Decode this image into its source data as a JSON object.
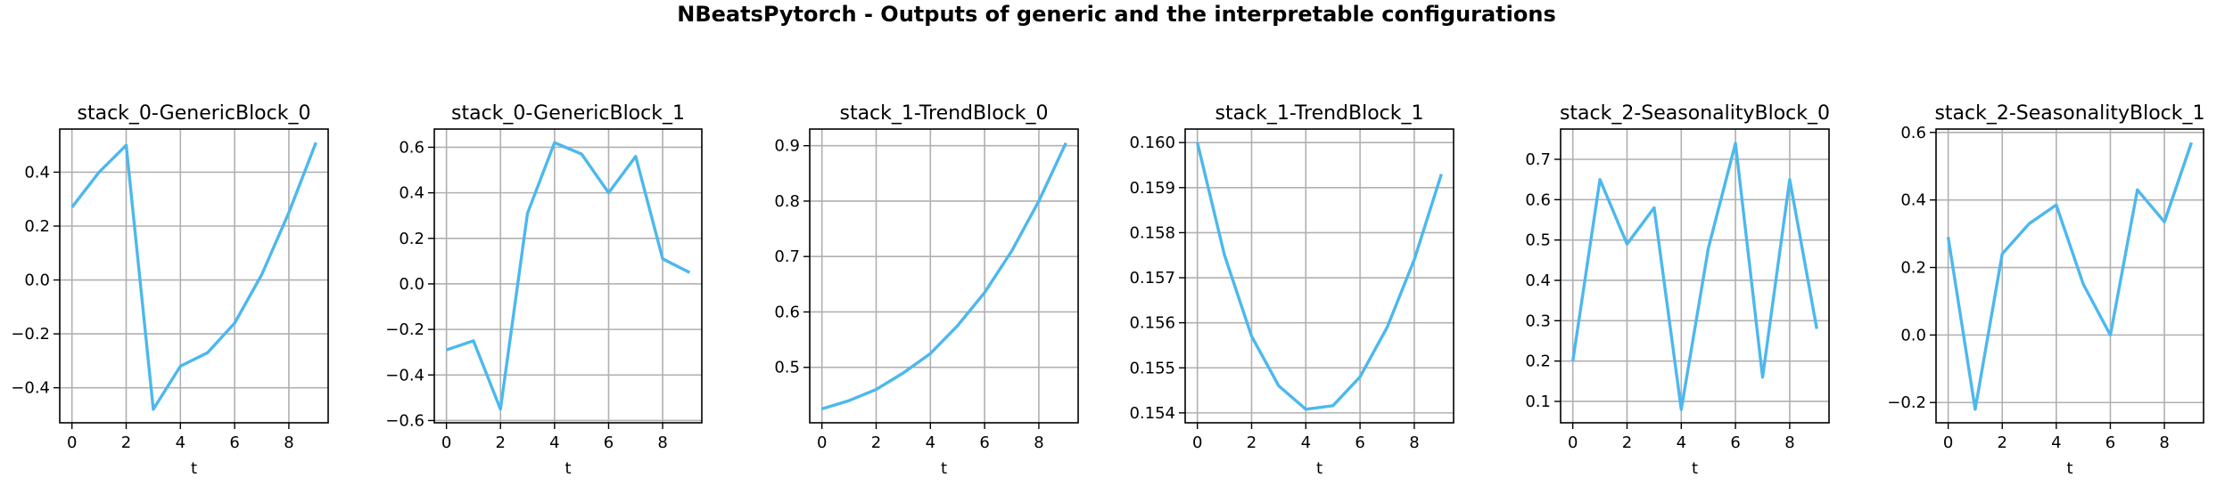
{
  "figure": {
    "title": "NBeatsPytorch - Outputs of generic and the interpretable configurations",
    "line_color": "#4cb8ee",
    "grid_color": "#b0b0b0"
  },
  "chart_data": [
    {
      "type": "line",
      "title": "stack_0-GenericBlock_0",
      "xlabel": "t",
      "ylabel": "",
      "x": [
        0,
        1,
        2,
        3,
        4,
        5,
        6,
        7,
        8,
        9
      ],
      "series": [
        {
          "values": [
            0.27,
            0.4,
            0.5,
            -0.48,
            -0.32,
            -0.27,
            -0.16,
            0.02,
            0.25,
            0.51
          ]
        }
      ],
      "xlim": [
        -0.45,
        9.45
      ],
      "ylim": [
        -0.53,
        0.56
      ],
      "xticks": [
        0,
        2,
        4,
        6,
        8
      ],
      "yticks": [
        -0.4,
        -0.2,
        0.0,
        0.2,
        0.4
      ],
      "xtick_labels": [
        "0",
        "2",
        "4",
        "6",
        "8"
      ],
      "ytick_labels": [
        "−0.4",
        "−0.2",
        "0.0",
        "0.2",
        "0.4"
      ],
      "grid": true
    },
    {
      "type": "line",
      "title": "stack_0-GenericBlock_1",
      "xlabel": "t",
      "ylabel": "",
      "x": [
        0,
        1,
        2,
        3,
        4,
        5,
        6,
        7,
        8,
        9
      ],
      "series": [
        {
          "values": [
            -0.29,
            -0.25,
            -0.55,
            0.31,
            0.62,
            0.57,
            0.4,
            0.56,
            0.11,
            0.05
          ]
        }
      ],
      "xlim": [
        -0.45,
        9.45
      ],
      "ylim": [
        -0.61,
        0.68
      ],
      "xticks": [
        0,
        2,
        4,
        6,
        8
      ],
      "yticks": [
        -0.6,
        -0.4,
        -0.2,
        0.0,
        0.2,
        0.4,
        0.6
      ],
      "xtick_labels": [
        "0",
        "2",
        "4",
        "6",
        "8"
      ],
      "ytick_labels": [
        "−0.6",
        "−0.4",
        "−0.2",
        "0.0",
        "0.2",
        "0.4",
        "0.6"
      ],
      "grid": true
    },
    {
      "type": "line",
      "title": "stack_1-TrendBlock_0",
      "xlabel": "t",
      "ylabel": "",
      "x": [
        0,
        1,
        2,
        3,
        4,
        5,
        6,
        7,
        8,
        9
      ],
      "series": [
        {
          "values": [
            0.425,
            0.44,
            0.46,
            0.49,
            0.525,
            0.575,
            0.635,
            0.71,
            0.8,
            0.905
          ]
        }
      ],
      "xlim": [
        -0.45,
        9.45
      ],
      "ylim": [
        0.4,
        0.93
      ],
      "xticks": [
        0,
        2,
        4,
        6,
        8
      ],
      "yticks": [
        0.5,
        0.6,
        0.7,
        0.8,
        0.9
      ],
      "xtick_labels": [
        "0",
        "2",
        "4",
        "6",
        "8"
      ],
      "ytick_labels": [
        "0.5",
        "0.6",
        "0.7",
        "0.8",
        "0.9"
      ],
      "grid": true
    },
    {
      "type": "line",
      "title": "stack_1-TrendBlock_1",
      "xlabel": "t",
      "ylabel": "",
      "x": [
        0,
        1,
        2,
        3,
        4,
        5,
        6,
        7,
        8,
        9
      ],
      "series": [
        {
          "values": [
            0.16,
            0.1575,
            0.1557,
            0.1546,
            0.15408,
            0.15416,
            0.1548,
            0.1559,
            0.1574,
            0.1593
          ]
        }
      ],
      "xlim": [
        -0.45,
        9.45
      ],
      "ylim": [
        0.15378,
        0.1603
      ],
      "xticks": [
        0,
        2,
        4,
        6,
        8
      ],
      "yticks": [
        0.154,
        0.155,
        0.156,
        0.157,
        0.158,
        0.159,
        0.16
      ],
      "xtick_labels": [
        "0",
        "2",
        "4",
        "6",
        "8"
      ],
      "ytick_labels": [
        "0.154",
        "0.155",
        "0.156",
        "0.157",
        "0.158",
        "0.159",
        "0.160"
      ],
      "grid": true
    },
    {
      "type": "line",
      "title": "stack_2-SeasonalityBlock_0",
      "xlabel": "t",
      "ylabel": "",
      "x": [
        0,
        1,
        2,
        3,
        4,
        5,
        6,
        7,
        8,
        9
      ],
      "series": [
        {
          "values": [
            0.2,
            0.65,
            0.49,
            0.58,
            0.08,
            0.48,
            0.74,
            0.16,
            0.65,
            0.28
          ]
        }
      ],
      "xlim": [
        -0.45,
        9.45
      ],
      "ylim": [
        0.047,
        0.775
      ],
      "xticks": [
        0,
        2,
        4,
        6,
        8
      ],
      "yticks": [
        0.1,
        0.2,
        0.3,
        0.4,
        0.5,
        0.6,
        0.7
      ],
      "xtick_labels": [
        "0",
        "2",
        "4",
        "6",
        "8"
      ],
      "ytick_labels": [
        "0.1",
        "0.2",
        "0.3",
        "0.4",
        "0.5",
        "0.6",
        "0.7"
      ],
      "grid": true
    },
    {
      "type": "line",
      "title": "stack_2-SeasonalityBlock_1",
      "xlabel": "t",
      "ylabel": "",
      "x": [
        0,
        1,
        2,
        3,
        4,
        5,
        6,
        7,
        8,
        9
      ],
      "series": [
        {
          "values": [
            0.29,
            -0.22,
            0.24,
            0.33,
            0.385,
            0.15,
            0.0,
            0.43,
            0.335,
            0.57
          ]
        }
      ],
      "xlim": [
        -0.45,
        9.45
      ],
      "ylim": [
        -0.26,
        0.61
      ],
      "xticks": [
        0,
        2,
        4,
        6,
        8
      ],
      "yticks": [
        -0.2,
        0.0,
        0.2,
        0.4,
        0.6
      ],
      "xtick_labels": [
        "0",
        "2",
        "4",
        "6",
        "8"
      ],
      "ytick_labels": [
        "−0.2",
        "0.0",
        "0.2",
        "0.4",
        "0.6"
      ],
      "grid": true
    }
  ]
}
